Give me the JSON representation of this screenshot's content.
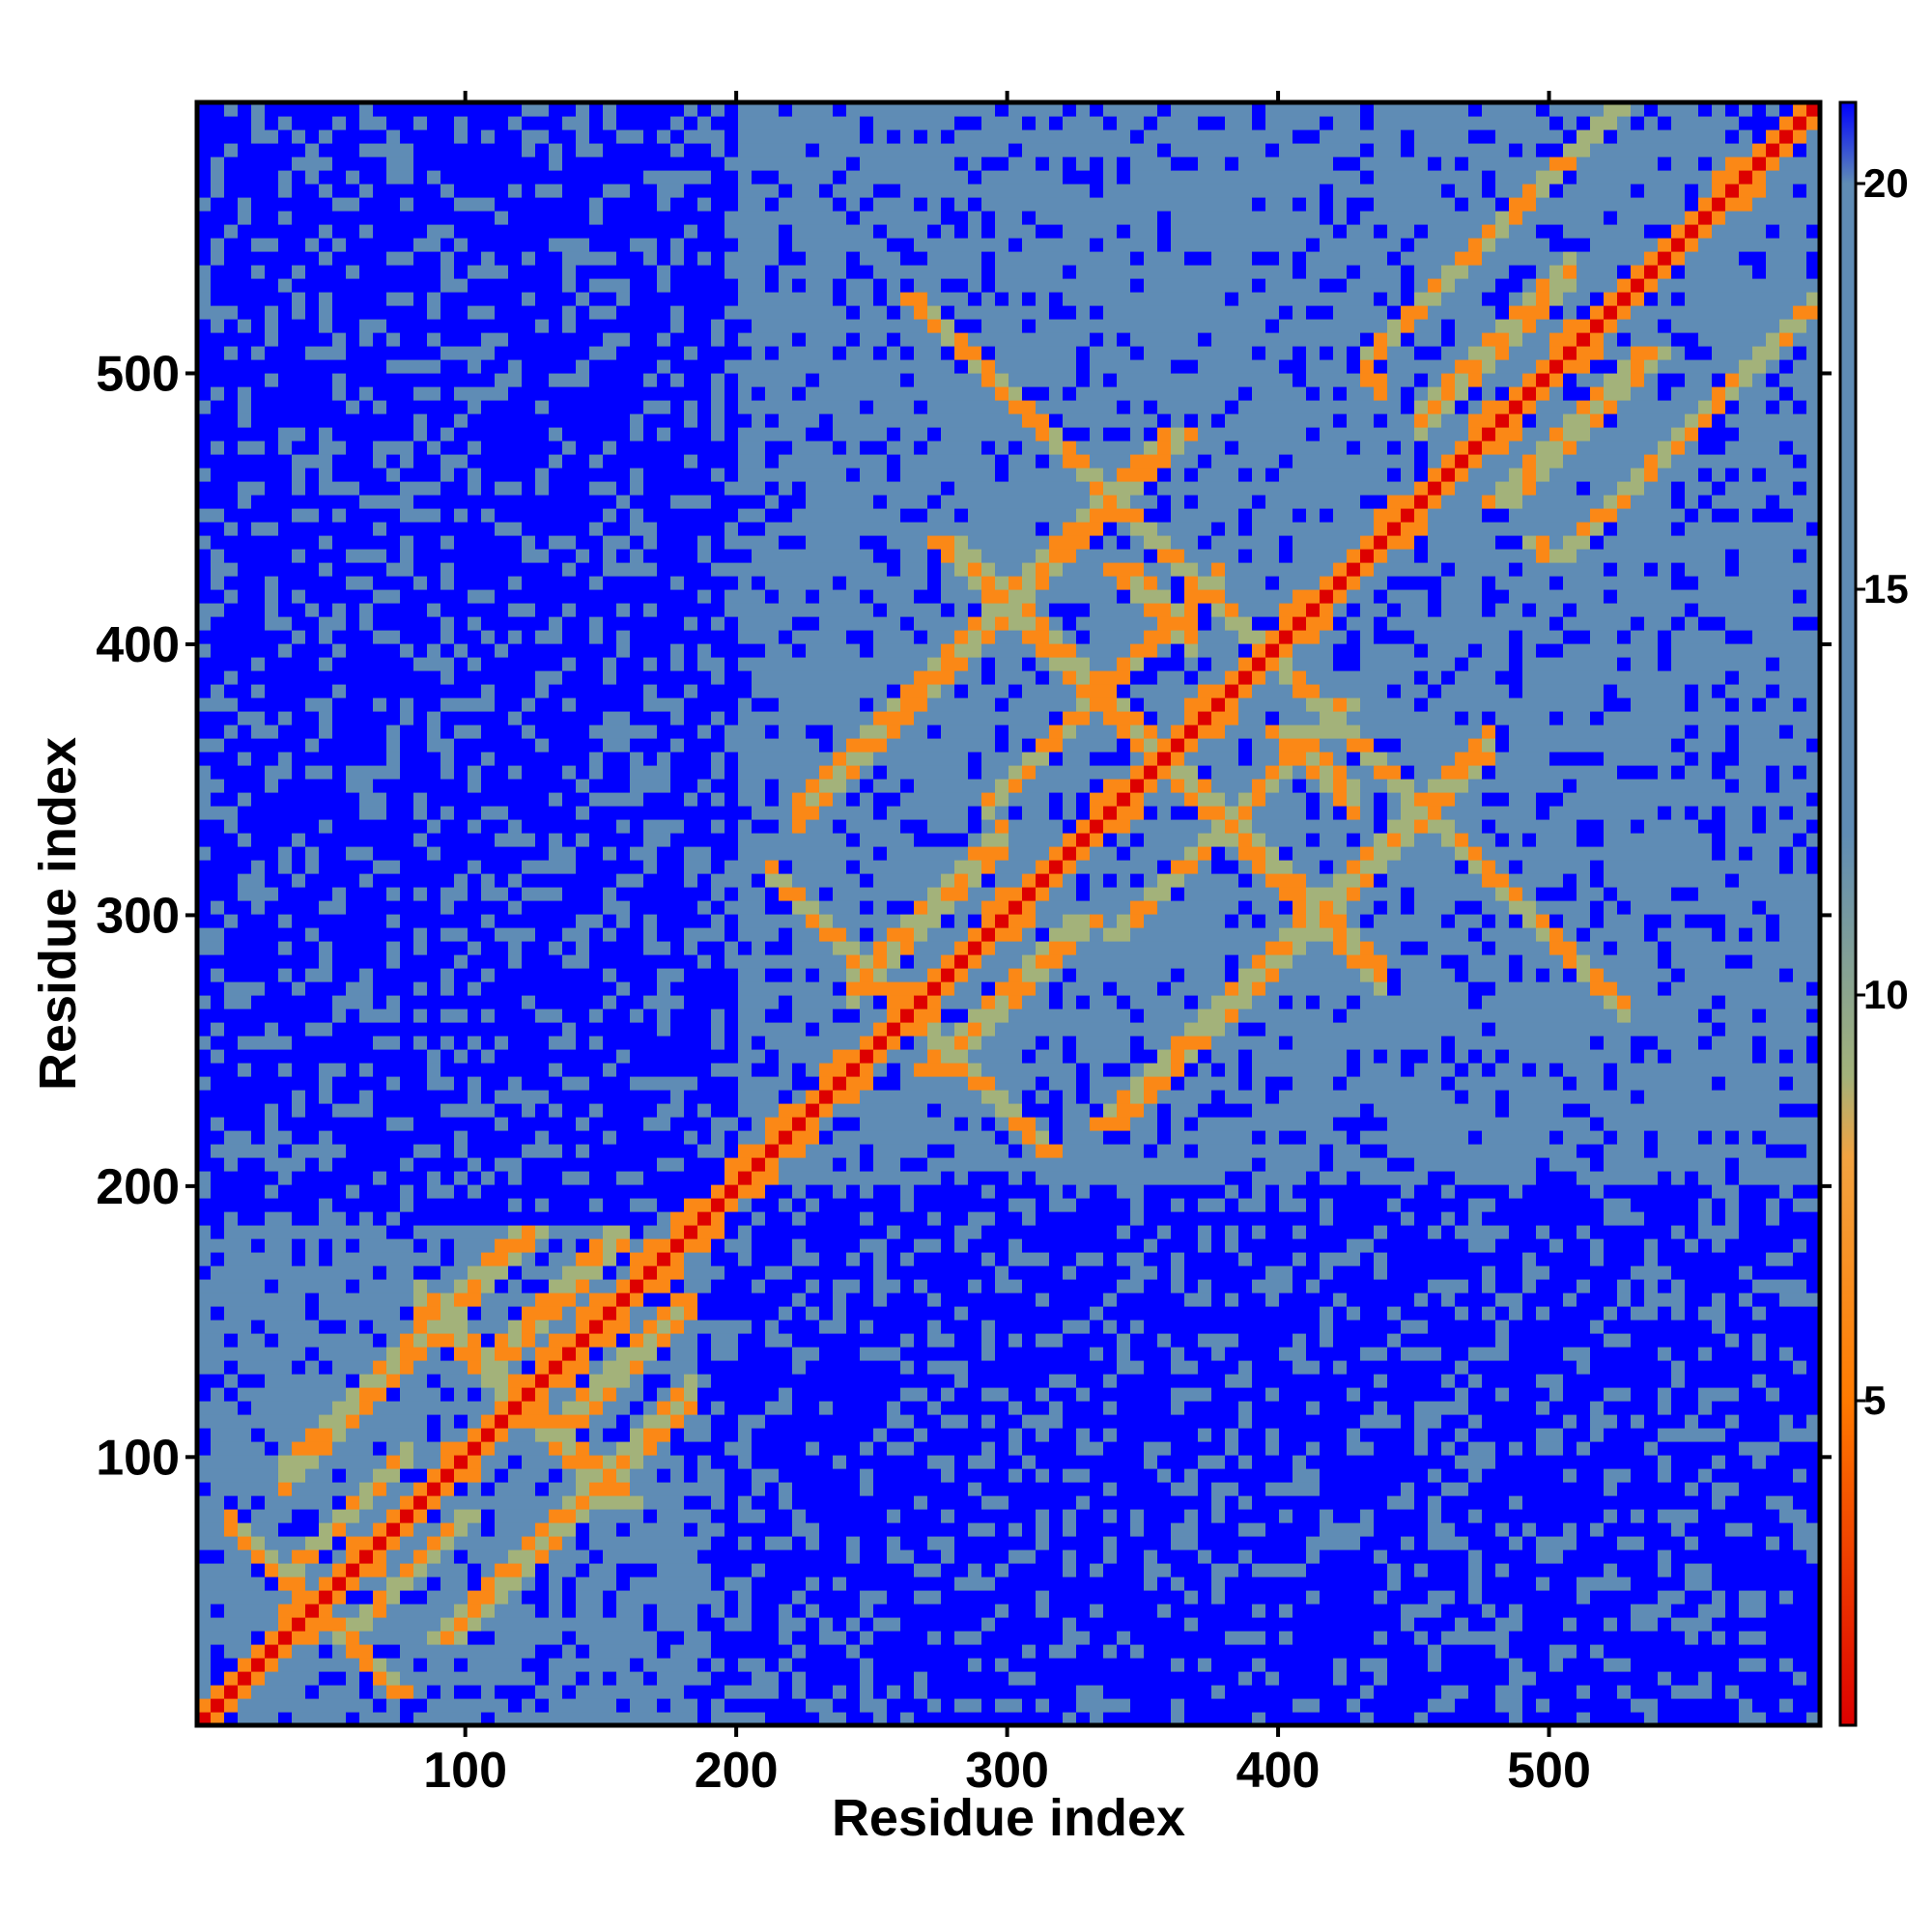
{
  "chart_data": {
    "type": "heatmap",
    "title": "",
    "xlabel": "Residue index",
    "ylabel": "Residue index",
    "xlim": [
      1,
      600
    ],
    "ylim": [
      1,
      600
    ],
    "x_ticks": [
      100,
      200,
      300,
      400,
      500
    ],
    "y_ticks": [
      100,
      200,
      300,
      400,
      500
    ],
    "colorbar": {
      "range": [
        1,
        21
      ],
      "ticks": [
        5,
        10,
        15,
        20
      ],
      "colors": [
        {
          "value": 1,
          "color": "#dd0000"
        },
        {
          "value": 5,
          "color": "#ff7a00"
        },
        {
          "value": 8,
          "color": "#f2a341"
        },
        {
          "value": 9,
          "color": "#a3b27a"
        },
        {
          "value": 12,
          "color": "#5f8cb5"
        },
        {
          "value": 20,
          "color": "#5f8cb5"
        },
        {
          "value": 21,
          "color": "#0000ff"
        }
      ]
    },
    "domains": [
      {
        "start": 1,
        "end": 185
      },
      {
        "start": 200,
        "end": 600
      }
    ],
    "description_values": {
      "diagonal_distance": 1,
      "near_contact_distance": 6,
      "intra_domain_distance": 17,
      "far_distance": 21
    }
  }
}
